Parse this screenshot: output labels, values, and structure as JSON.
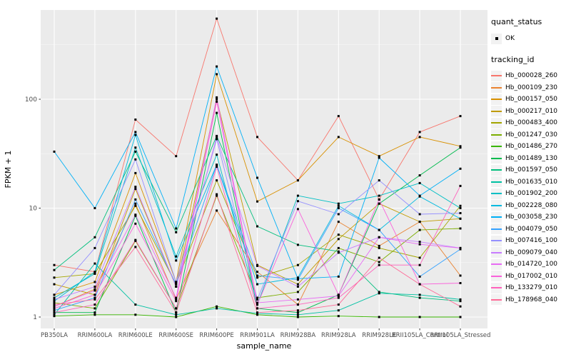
{
  "figure": {
    "background": "#FFFFFF",
    "panel_bg": "#EBEBEB",
    "grid_color": "#FFFFFF",
    "tick_label_color": "#4D4D4D",
    "point_color": "#000000"
  },
  "axes": {
    "x_title": "sample_name",
    "y_title": "FPKM + 1",
    "y_tick_labels": [
      "100",
      "10",
      "1"
    ],
    "y_tick_values": [
      100,
      10,
      1
    ],
    "x_tick_labels": [
      "PB350LA",
      "RRIM600LA",
      "RRIM600LE",
      "RRIM600SE",
      "RRIM600PE",
      "RRIM901LA",
      "RRIM928BA",
      "RRIM928LA",
      "RRIM928LE",
      "RRII105LA_Control",
      "RRII105LA_Stressed"
    ]
  },
  "legend": {
    "quant_status_title": "quant_status",
    "quant_status_items": [
      {
        "label": "OK",
        "shape": "point",
        "color": "#000000"
      }
    ],
    "tracking_id_title": "tracking_id",
    "items": [
      {
        "label": "Hb_000028_260",
        "color": "#F8766D"
      },
      {
        "label": "Hb_000109_230",
        "color": "#EA8331"
      },
      {
        "label": "Hb_000157_050",
        "color": "#D89000"
      },
      {
        "label": "Hb_000217_010",
        "color": "#C09B00"
      },
      {
        "label": "Hb_000483_400",
        "color": "#A3A500"
      },
      {
        "label": "Hb_001247_030",
        "color": "#7CAE00"
      },
      {
        "label": "Hb_001486_270",
        "color": "#39B600"
      },
      {
        "label": "Hb_001489_130",
        "color": "#00BB4E"
      },
      {
        "label": "Hb_001597_050",
        "color": "#00BF7D"
      },
      {
        "label": "Hb_001635_010",
        "color": "#00C1A3"
      },
      {
        "label": "Hb_001902_200",
        "color": "#00BFC4"
      },
      {
        "label": "Hb_002228_080",
        "color": "#00BAE0"
      },
      {
        "label": "Hb_003058_230",
        "color": "#00B0F6"
      },
      {
        "label": "Hb_004079_050",
        "color": "#35A2FF"
      },
      {
        "label": "Hb_007416_100",
        "color": "#9590FF"
      },
      {
        "label": "Hb_009079_040",
        "color": "#C77CFF"
      },
      {
        "label": "Hb_014720_100",
        "color": "#E76BF3"
      },
      {
        "label": "Hb_017002_010",
        "color": "#FA62DB"
      },
      {
        "label": "Hb_133279_010",
        "color": "#FF62BC"
      },
      {
        "label": "Hb_178968_040",
        "color": "#FF6A98"
      }
    ]
  },
  "chart_data": {
    "type": "line",
    "xlabel": "sample_name",
    "ylabel": "FPKM + 1",
    "y_scale": "log10",
    "ylim": [
      1,
      700
    ],
    "grid": true,
    "legend_position": "right",
    "point_marker": "black-square",
    "categories": [
      "PB350LA",
      "RRIM600LA",
      "RRIM600LE",
      "RRIM600SE",
      "RRIM600PE",
      "RRIM901LA",
      "RRIM928BA",
      "RRIM928LA",
      "RRIM928LE",
      "RRII105LA_Control",
      "RRII105LA_Stressed"
    ],
    "series": [
      {
        "name": "Hb_000028_260",
        "color": "#F8766D",
        "values": [
          3.0,
          2.6,
          65,
          30,
          550,
          45,
          18,
          70,
          12,
          50,
          70
        ]
      },
      {
        "name": "Hb_000109_230",
        "color": "#EA8331",
        "values": [
          1.25,
          1.8,
          11,
          1.45,
          9.5,
          2.6,
          1.3,
          7.5,
          4.5,
          7.5,
          2.4
        ]
      },
      {
        "name": "Hb_000157_050",
        "color": "#D89000",
        "values": [
          1.6,
          2.1,
          21,
          2.1,
          170,
          11.5,
          18,
          45,
          30,
          45,
          37
        ]
      },
      {
        "name": "Hb_000217_010",
        "color": "#C09B00",
        "values": [
          2.0,
          1.6,
          15,
          1.9,
          100,
          3.0,
          2.0,
          5.2,
          11,
          7.5,
          8.0
        ]
      },
      {
        "name": "Hb_000483_400",
        "color": "#A3A500",
        "values": [
          2.3,
          2.5,
          10.5,
          2.0,
          18,
          2.3,
          3.0,
          5.7,
          4.3,
          3.5,
          10.5
        ]
      },
      {
        "name": "Hb_001247_030",
        "color": "#7CAE00",
        "values": [
          1.35,
          1.2,
          5.0,
          1.2,
          13,
          1.5,
          1.7,
          4.3,
          3.2,
          6.3,
          6.5
        ]
      },
      {
        "name": "Hb_001486_270",
        "color": "#39B600",
        "values": [
          1.02,
          1.05,
          1.05,
          1.0,
          1.25,
          1.05,
          1.0,
          1.02,
          1.0,
          1.0,
          1.0
        ]
      },
      {
        "name": "Hb_001489_130",
        "color": "#00BB4E",
        "values": [
          1.1,
          1.1,
          8.5,
          1.1,
          75,
          1.2,
          1.1,
          1.6,
          11,
          20,
          36
        ]
      },
      {
        "name": "Hb_001597_050",
        "color": "#00BF7D",
        "values": [
          2.7,
          5.4,
          33,
          6.0,
          46,
          6.8,
          4.6,
          4.0,
          1.7,
          1.5,
          1.4
        ]
      },
      {
        "name": "Hb_001635_010",
        "color": "#00C1A3",
        "values": [
          1.05,
          3.1,
          1.3,
          1.05,
          1.2,
          1.08,
          1.05,
          1.15,
          1.65,
          1.6,
          1.45
        ]
      },
      {
        "name": "Hb_001902_200",
        "color": "#00BFC4",
        "values": [
          1.5,
          2.5,
          36,
          3.6,
          31,
          1.3,
          13,
          11,
          13,
          17,
          10
        ]
      },
      {
        "name": "Hb_002228_080",
        "color": "#00BAE0",
        "values": [
          1.4,
          2.6,
          47,
          3.3,
          25,
          2.0,
          2.3,
          10.5,
          6.3,
          12.8,
          8.0
        ]
      },
      {
        "name": "Hb_003058_230",
        "color": "#00B0F6",
        "values": [
          33,
          10,
          50,
          6.5,
          200,
          19,
          2.25,
          2.35,
          29,
          13,
          23
        ]
      },
      {
        "name": "Hb_004079_050",
        "color": "#35A2FF",
        "values": [
          1.15,
          1.5,
          12,
          2.0,
          25,
          2.4,
          2.2,
          10,
          6.3,
          2.35,
          4.2
        ]
      },
      {
        "name": "Hb_007416_100",
        "color": "#9590FF",
        "values": [
          1.6,
          4.3,
          28,
          2.1,
          43,
          1.45,
          11.6,
          8.8,
          18,
          8.8,
          9.0
        ]
      },
      {
        "name": "Hb_009079_040",
        "color": "#C77CFF",
        "values": [
          1.45,
          1.9,
          15.7,
          1.9,
          45,
          2.95,
          1.9,
          3.9,
          5.4,
          4.9,
          4.3
        ]
      },
      {
        "name": "Hb_014720_100",
        "color": "#E76BF3",
        "values": [
          1.25,
          1.75,
          8.7,
          1.5,
          104,
          1.35,
          1.45,
          1.56,
          5.4,
          4.65,
          4.3
        ]
      },
      {
        "name": "Hb_017002_010",
        "color": "#FA62DB",
        "values": [
          1.2,
          1.6,
          7.2,
          1.4,
          95,
          1.3,
          9.8,
          1.6,
          12,
          2.0,
          2.05
        ]
      },
      {
        "name": "Hb_133279_010",
        "color": "#FF62BC",
        "values": [
          1.1,
          1.3,
          5.1,
          1.2,
          24,
          1.2,
          1.3,
          1.5,
          3.0,
          3.0,
          16
        ]
      },
      {
        "name": "Hb_178968_040",
        "color": "#FF6A98",
        "values": [
          1.3,
          1.45,
          4.4,
          1.1,
          13.4,
          1.1,
          1.15,
          1.3,
          3.5,
          2.0,
          1.25
        ]
      }
    ]
  }
}
